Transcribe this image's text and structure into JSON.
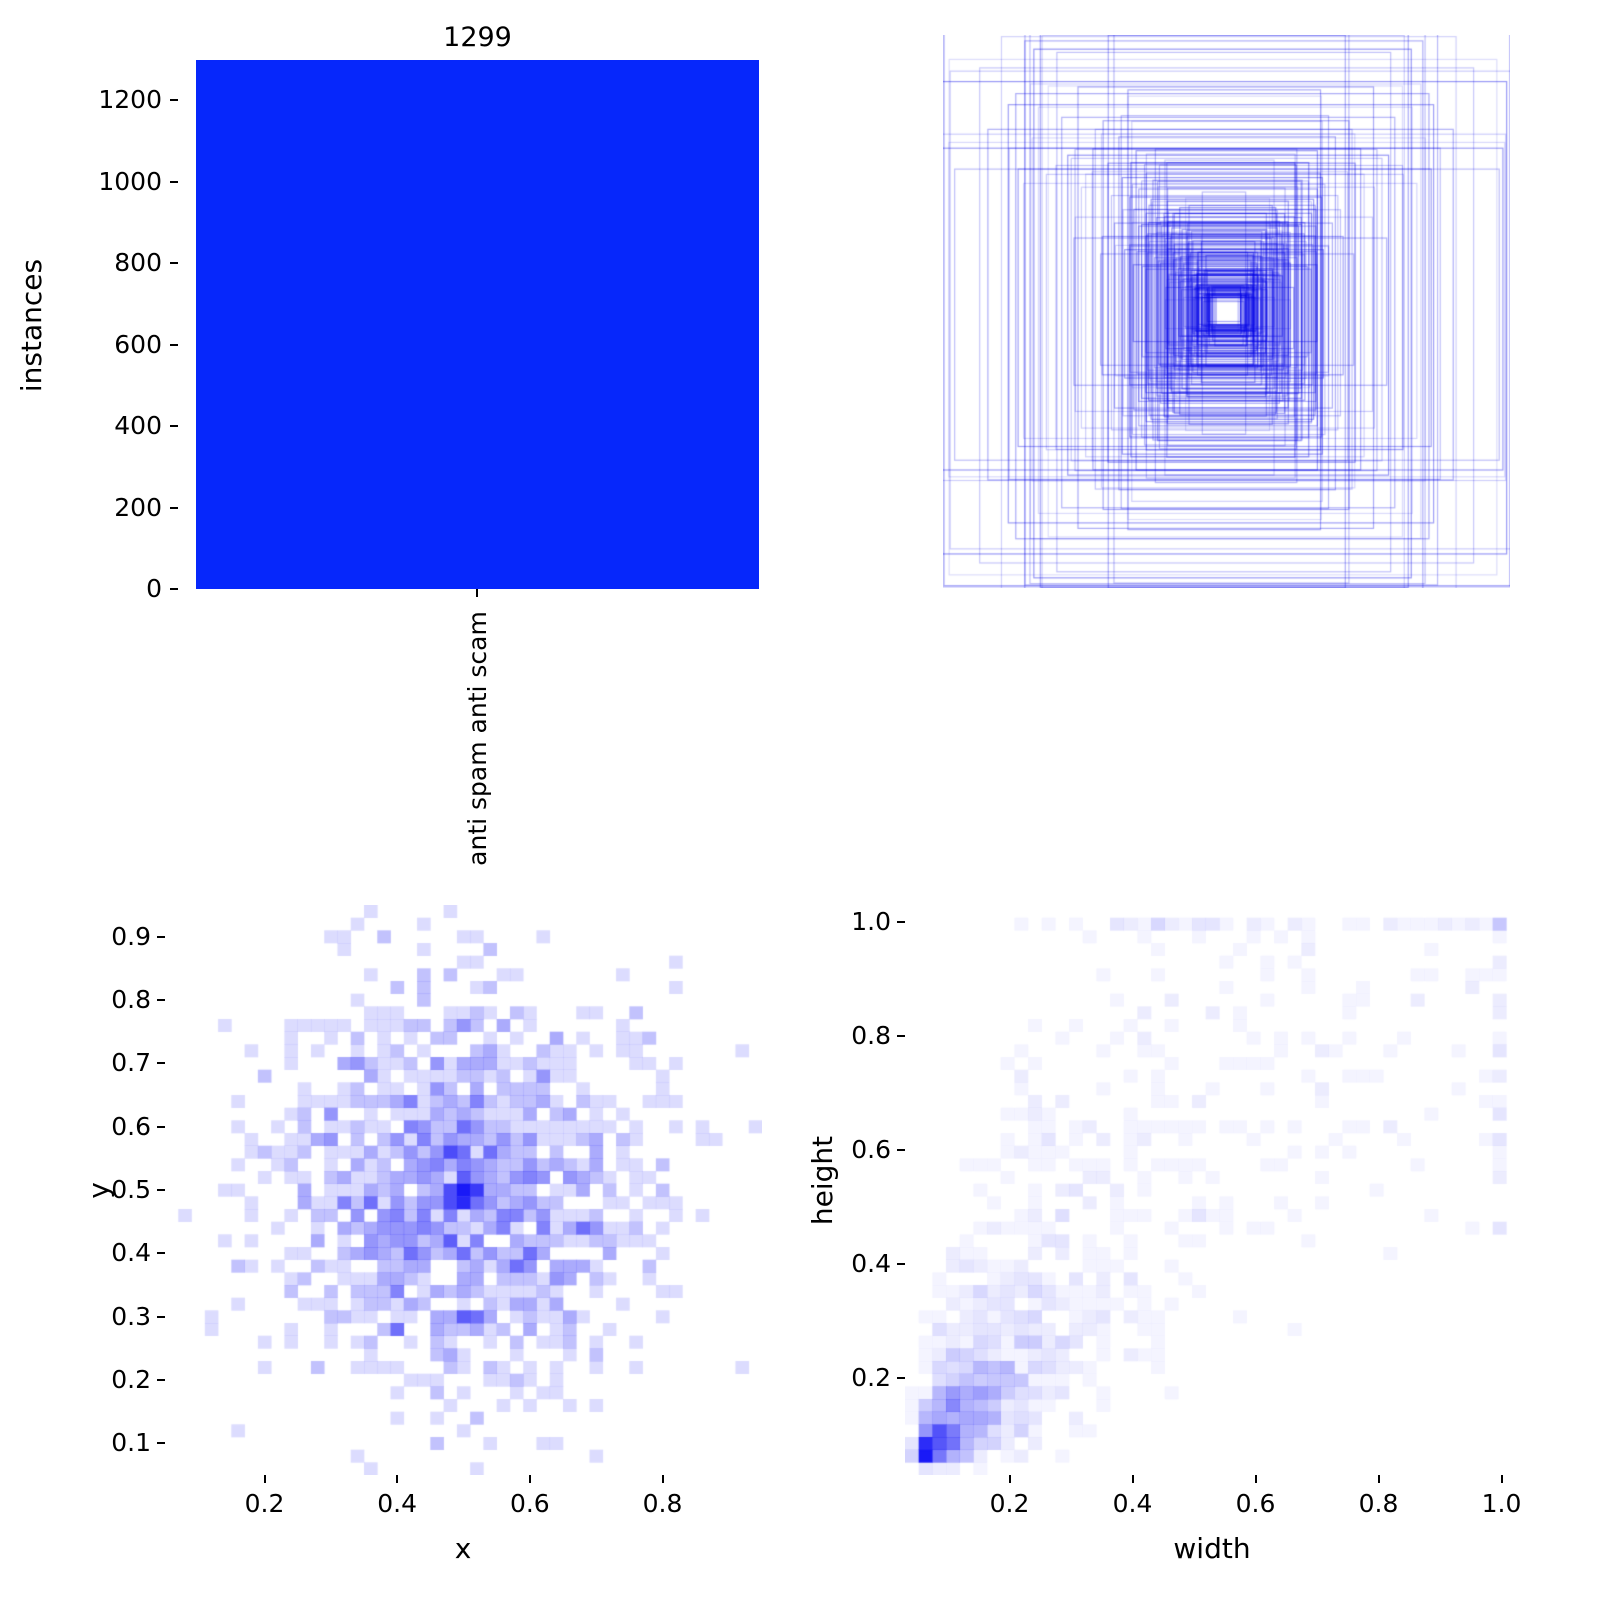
{
  "figure": {
    "background": "#ffffff",
    "text_color": "#000000",
    "colormap": "white-to-blue",
    "description": "2x2 dataset statistics figure: instances-per-class bar chart, centered bounding-box overlay, x/y center 2D histogram, width/height 2D histogram"
  },
  "chart_data": [
    {
      "id": "instances-bar",
      "type": "bar",
      "categories": [
        "anti spam anti scam"
      ],
      "values": [
        1299
      ],
      "bar_label": "1299",
      "ylabel": "instances",
      "ylim": [
        0,
        1299
      ],
      "yticks": [
        {
          "v": 0,
          "label": "0"
        },
        {
          "v": 200,
          "label": "200"
        },
        {
          "v": 400,
          "label": "400"
        },
        {
          "v": 600,
          "label": "600"
        },
        {
          "v": 800,
          "label": "800"
        },
        {
          "v": 1000,
          "label": "1000"
        },
        {
          "v": 1200,
          "label": "1200"
        }
      ],
      "bar_color": "#0627fb"
    },
    {
      "id": "bbox-overlay",
      "type": "rectangles",
      "description": "all bounding boxes drawn concentric around the image center",
      "count": 260,
      "seed": 9,
      "center": [
        0.5,
        0.5
      ],
      "center_jitter": 0.006,
      "stroke_color": "#0000e6",
      "stroke_alpha_min": 0.14,
      "stroke_alpha_max": 0.42,
      "size_model": {
        "log_median": -2.0,
        "log_sigma": 0.8,
        "ratio_log_mean": 0.15,
        "ratio_log_sigma": 0.5,
        "large_fraction": 0.1,
        "min_size": 0.05,
        "max_size": 1.0
      }
    },
    {
      "id": "xy-hist2d",
      "type": "heatmap",
      "xlabel": "x",
      "ylabel": "y",
      "bins": 45,
      "samples": 1299,
      "seed": 21,
      "xlim": [
        0.05,
        0.95
      ],
      "ylim": [
        0.05,
        0.95
      ],
      "xticks": [
        {
          "v": 0.2,
          "label": "0.2"
        },
        {
          "v": 0.4,
          "label": "0.4"
        },
        {
          "v": 0.6,
          "label": "0.6"
        },
        {
          "v": 0.8,
          "label": "0.8"
        }
      ],
      "yticks": [
        {
          "v": 0.1,
          "label": "0.1"
        },
        {
          "v": 0.2,
          "label": "0.2"
        },
        {
          "v": 0.3,
          "label": "0.3"
        },
        {
          "v": 0.4,
          "label": "0.4"
        },
        {
          "v": 0.5,
          "label": "0.5"
        },
        {
          "v": 0.6,
          "label": "0.6"
        },
        {
          "v": 0.7,
          "label": "0.7"
        },
        {
          "v": 0.8,
          "label": "0.8"
        },
        {
          "v": 0.9,
          "label": "0.9"
        }
      ],
      "model": "gaussian",
      "dist": {
        "cx": 0.5,
        "cy": 0.5,
        "sx": 0.145,
        "sy": 0.16,
        "hotspots": [
          {
            "x": 0.5,
            "y": 0.497,
            "s": 0.01,
            "frac": 0.016
          },
          {
            "x": 0.503,
            "y": 0.3,
            "s": 0.012,
            "frac": 0.012
          }
        ]
      },
      "max_color": "#1919f7"
    },
    {
      "id": "wh-hist2d",
      "type": "heatmap",
      "xlabel": "width",
      "ylabel": "height",
      "bins": 45,
      "samples": 1299,
      "seed": 33,
      "xlim": [
        0.03,
        1.03
      ],
      "ylim": [
        0.03,
        1.03
      ],
      "xticks": [
        {
          "v": 0.2,
          "label": "0.2"
        },
        {
          "v": 0.4,
          "label": "0.4"
        },
        {
          "v": 0.6,
          "label": "0.6"
        },
        {
          "v": 0.8,
          "label": "0.8"
        },
        {
          "v": 1.0,
          "label": "1.0"
        }
      ],
      "yticks": [
        {
          "v": 0.2,
          "label": "0.2"
        },
        {
          "v": 0.4,
          "label": "0.4"
        },
        {
          "v": 0.6,
          "label": "0.6"
        },
        {
          "v": 0.8,
          "label": "0.8"
        },
        {
          "v": 1.0,
          "label": "1.0"
        }
      ],
      "model": "boxsize",
      "size_model": {
        "log_median": -2.0,
        "log_sigma": 0.8,
        "ratio_log_mean": 0.15,
        "ratio_log_sigma": 0.5,
        "large_fraction": 0.1,
        "min_size": 0.05,
        "max_size": 1.0
      },
      "max_color": "#1919f7"
    }
  ]
}
